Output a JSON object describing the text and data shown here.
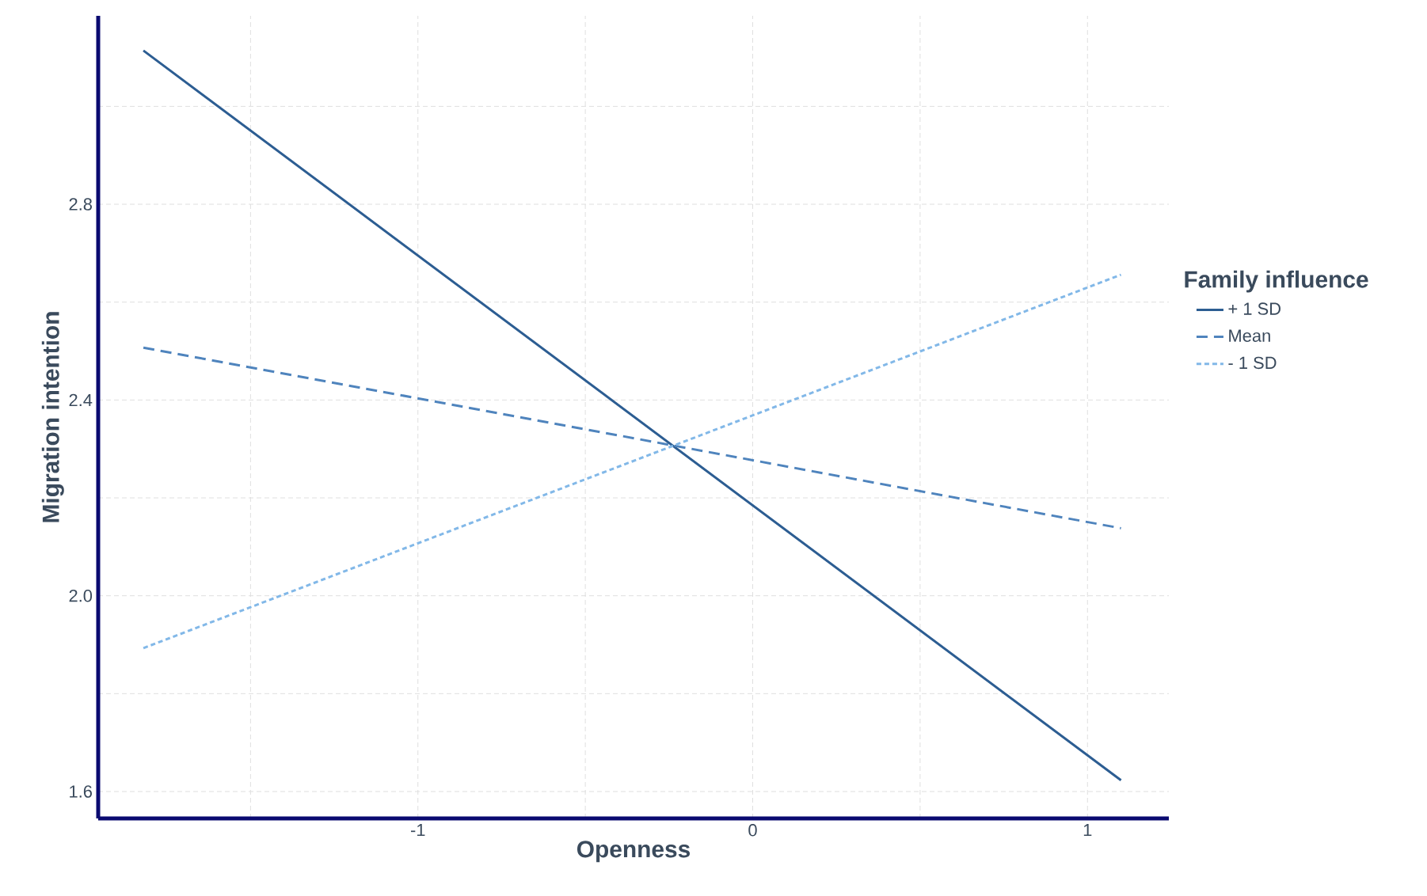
{
  "chart_data": {
    "type": "line",
    "xlabel": "Openness",
    "ylabel": "Migration intention",
    "legend_title": "Family influence",
    "x": [
      -1.82,
      1.1
    ],
    "series": [
      {
        "name": "+ 1 SD",
        "color": "#2c5d92",
        "line_style": "solid",
        "values": [
          3.114,
          1.623
        ]
      },
      {
        "name": "Mean",
        "color": "#4f84bd",
        "line_style": "dashed",
        "values": [
          2.507,
          2.138
        ]
      },
      {
        "name": "- 1 SD",
        "color": "#82b8e8",
        "line_style": "dotted",
        "values": [
          1.893,
          2.656
        ]
      }
    ],
    "xlim": [
      -1.955,
      1.243
    ],
    "ylim": [
      1.545,
      3.185
    ],
    "xticks": [
      {
        "value": -1.5,
        "label": null
      },
      -1,
      {
        "value": -0.5,
        "label": null
      },
      0,
      {
        "value": 0.5,
        "label": null
      },
      1
    ],
    "yticks": [
      1.6,
      {
        "value": 1.8,
        "label": null
      },
      {
        "value": 2.0,
        "label": "2.0"
      },
      {
        "value": 2.2,
        "label": null
      },
      2.4,
      {
        "value": 2.6,
        "label": null
      },
      2.8,
      {
        "value": 3.0,
        "label": null
      }
    ],
    "grid": true,
    "legend": "right",
    "marker": "none"
  }
}
